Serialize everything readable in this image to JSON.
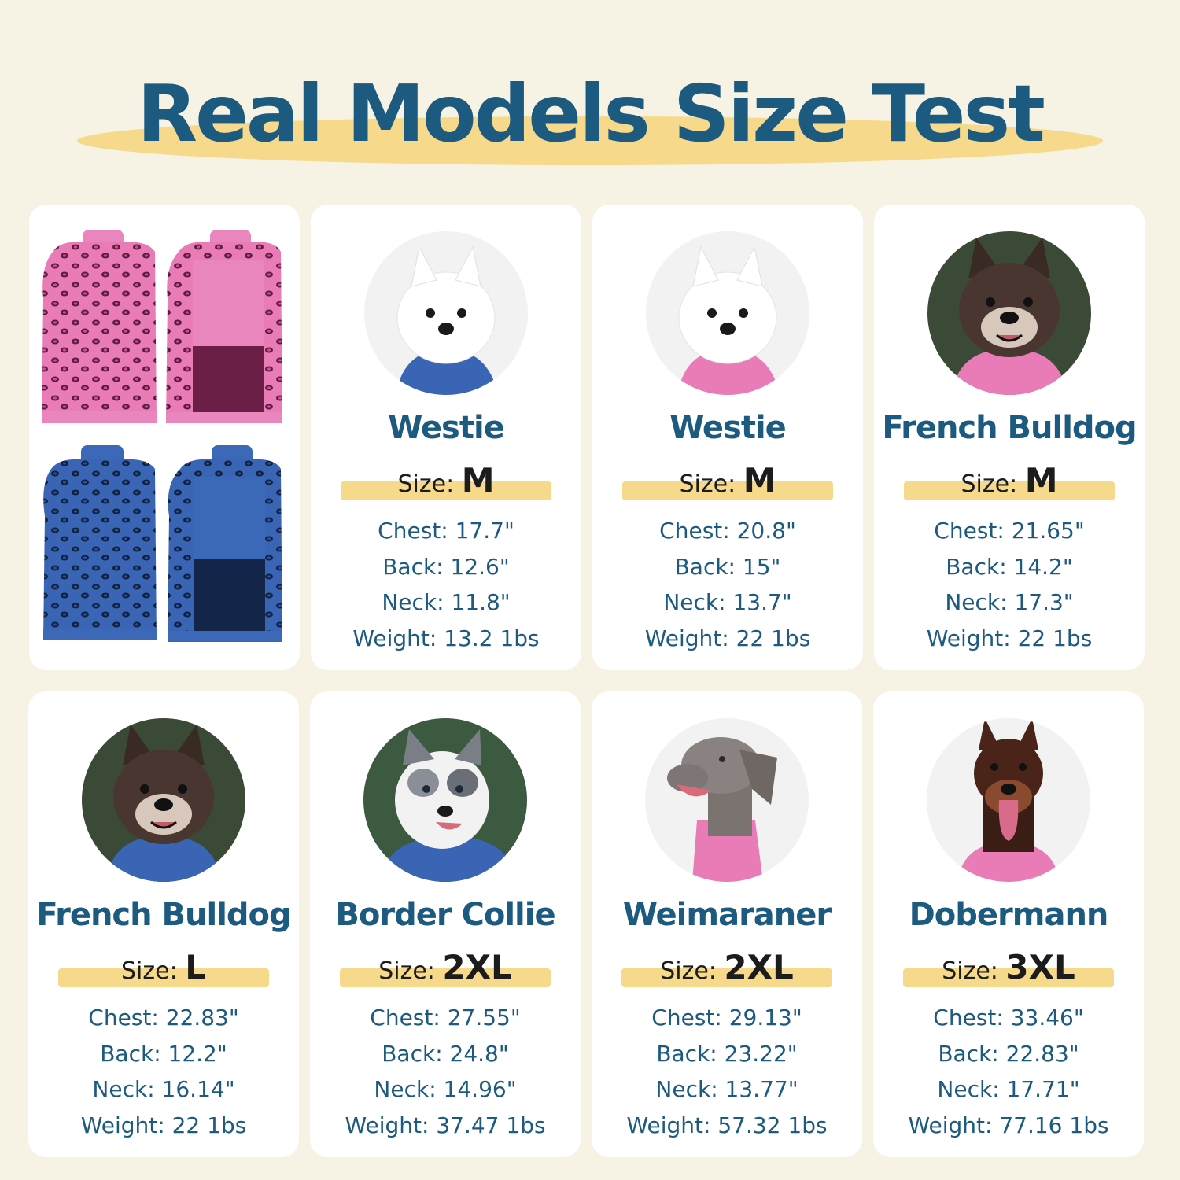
{
  "header": {
    "title": "Real Models Size Test"
  },
  "colors": {
    "background": "#f6f2e4",
    "title": "#1c5a80",
    "highlight": "#f6d98a",
    "pink_sweater": "#e97bb7",
    "blue_sweater": "#3a64b4"
  },
  "size_prefix": "Size:",
  "models": [
    {
      "breed": "Westie",
      "size": "M",
      "sweater": "blue",
      "photo_icon": "westie-photo",
      "specs": [
        "Chest: 17.7\"",
        "Back: 12.6\"",
        "Neck: 11.8\"",
        "Weight: 13.2 1bs"
      ]
    },
    {
      "breed": "Westie",
      "size": "M",
      "sweater": "pink",
      "photo_icon": "westie-photo",
      "specs": [
        "Chest: 20.8\"",
        "Back: 15\"",
        "Neck: 13.7\"",
        "Weight: 22 1bs"
      ]
    },
    {
      "breed": "French Bulldog",
      "size": "M",
      "sweater": "pink",
      "photo_icon": "french-bulldog-photo",
      "specs": [
        "Chest: 21.65\"",
        "Back: 14.2\"",
        "Neck: 17.3\"",
        "Weight: 22 1bs"
      ]
    },
    {
      "breed": "French Bulldog",
      "size": "L",
      "sweater": "blue",
      "photo_icon": "french-bulldog-photo",
      "specs": [
        "Chest: 22.83\"",
        "Back: 12.2\"",
        "Neck: 16.14\"",
        "Weight: 22 1bs"
      ]
    },
    {
      "breed": "Border Collie",
      "size": "2XL",
      "sweater": "blue",
      "photo_icon": "border-collie-photo",
      "specs": [
        "Chest: 27.55\"",
        "Back: 24.8\"",
        "Neck: 14.96\"",
        "Weight: 37.47 1bs"
      ]
    },
    {
      "breed": "Weimaraner",
      "size": "2XL",
      "sweater": "pink",
      "photo_icon": "weimaraner-photo",
      "specs": [
        "Chest: 29.13\"",
        "Back: 23.22\"",
        "Neck: 13.77\"",
        "Weight: 57.32 1bs"
      ]
    },
    {
      "breed": "Dobermann",
      "size": "3XL",
      "sweater": "pink",
      "photo_icon": "dobermann-photo",
      "specs": [
        "Chest: 33.46\"",
        "Back: 22.83\"",
        "Neck: 17.71\"",
        "Weight: 77.16 1bs"
      ]
    }
  ]
}
